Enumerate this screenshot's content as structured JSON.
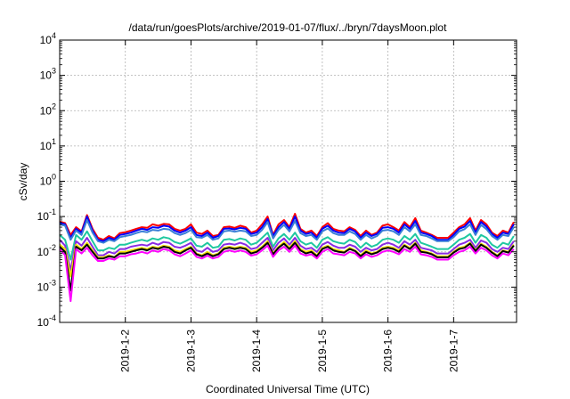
{
  "chart_data": {
    "type": "line",
    "title": "/data/run/goesPlots/archive/2019-01-07/flux/../bryn/7daysMoon.plot",
    "xlabel": "Coordinated Universal Time (UTC)",
    "ylabel": "cSv/day",
    "y_scale": "log",
    "ylim": [
      0.0001,
      10000
    ],
    "xlim": [
      "2019-01-01T00:00",
      "2019-01-07T23:00"
    ],
    "grid": true,
    "x_tick_labels": [
      "2019-1-2",
      "2019-1-3",
      "2019-1-4",
      "2019-1-5",
      "2019-1-6",
      "2019-1-7"
    ],
    "x_tick_dates": [
      "2019-01-02T00:00",
      "2019-01-03T00:00",
      "2019-01-04T00:00",
      "2019-01-05T00:00",
      "2019-01-06T00:00",
      "2019-01-07T00:00"
    ],
    "y_ticks": [
      {
        "value": 0.0001,
        "base": "10",
        "exp": "-4"
      },
      {
        "value": 0.001,
        "base": "10",
        "exp": "-3"
      },
      {
        "value": 0.01,
        "base": "10",
        "exp": "-2"
      },
      {
        "value": 0.1,
        "base": "10",
        "exp": "-1"
      },
      {
        "value": 1,
        "base": "10",
        "exp": "0"
      },
      {
        "value": 10,
        "base": "10",
        "exp": "1"
      },
      {
        "value": 100,
        "base": "10",
        "exp": "2"
      },
      {
        "value": 1000,
        "base": "10",
        "exp": "3"
      },
      {
        "value": 10000,
        "base": "10",
        "exp": "4"
      }
    ],
    "x": [
      "2019-01-01T00:00",
      "2019-01-01T02:00",
      "2019-01-01T04:00",
      "2019-01-01T06:00",
      "2019-01-01T08:00",
      "2019-01-01T10:00",
      "2019-01-01T12:00",
      "2019-01-01T14:00",
      "2019-01-01T16:00",
      "2019-01-01T18:00",
      "2019-01-01T20:00",
      "2019-01-01T22:00",
      "2019-01-02T00:00",
      "2019-01-02T02:00",
      "2019-01-02T04:00",
      "2019-01-02T06:00",
      "2019-01-02T08:00",
      "2019-01-02T10:00",
      "2019-01-02T12:00",
      "2019-01-02T14:00",
      "2019-01-02T16:00",
      "2019-01-02T18:00",
      "2019-01-02T20:00",
      "2019-01-02T22:00",
      "2019-01-03T00:00",
      "2019-01-03T02:00",
      "2019-01-03T04:00",
      "2019-01-03T06:00",
      "2019-01-03T08:00",
      "2019-01-03T10:00",
      "2019-01-03T12:00",
      "2019-01-03T14:00",
      "2019-01-03T16:00",
      "2019-01-03T18:00",
      "2019-01-03T20:00",
      "2019-01-03T22:00",
      "2019-01-04T00:00",
      "2019-01-04T02:00",
      "2019-01-04T04:00",
      "2019-01-04T06:00",
      "2019-01-04T08:00",
      "2019-01-04T10:00",
      "2019-01-04T12:00",
      "2019-01-04T14:00",
      "2019-01-04T16:00",
      "2019-01-04T18:00",
      "2019-01-04T20:00",
      "2019-01-04T22:00",
      "2019-01-05T00:00",
      "2019-01-05T02:00",
      "2019-01-05T04:00",
      "2019-01-05T06:00",
      "2019-01-05T08:00",
      "2019-01-05T10:00",
      "2019-01-05T12:00",
      "2019-01-05T14:00",
      "2019-01-05T16:00",
      "2019-01-05T18:00",
      "2019-01-05T20:00",
      "2019-01-05T22:00",
      "2019-01-06T00:00",
      "2019-01-06T02:00",
      "2019-01-06T04:00",
      "2019-01-06T06:00",
      "2019-01-06T08:00",
      "2019-01-06T10:00",
      "2019-01-06T12:00",
      "2019-01-06T14:00",
      "2019-01-06T16:00",
      "2019-01-06T18:00",
      "2019-01-06T20:00",
      "2019-01-06T22:00",
      "2019-01-07T00:00",
      "2019-01-07T02:00",
      "2019-01-07T04:00",
      "2019-01-07T06:00",
      "2019-01-07T08:00",
      "2019-01-07T10:00",
      "2019-01-07T12:00",
      "2019-01-07T14:00",
      "2019-01-07T16:00",
      "2019-01-07T18:00",
      "2019-01-07T20:00",
      "2019-01-07T22:00"
    ],
    "series": [
      {
        "color": "#ff0000",
        "values": [
          0.072,
          0.065,
          0.03,
          0.05,
          0.038,
          0.11,
          0.045,
          0.025,
          0.022,
          0.028,
          0.024,
          0.034,
          0.036,
          0.04,
          0.045,
          0.05,
          0.048,
          0.06,
          0.055,
          0.062,
          0.06,
          0.045,
          0.04,
          0.045,
          0.06,
          0.035,
          0.032,
          0.04,
          0.028,
          0.03,
          0.05,
          0.052,
          0.048,
          0.055,
          0.05,
          0.035,
          0.04,
          0.06,
          0.1,
          0.03,
          0.06,
          0.08,
          0.05,
          0.12,
          0.045,
          0.035,
          0.04,
          0.028,
          0.05,
          0.065,
          0.045,
          0.04,
          0.038,
          0.05,
          0.042,
          0.028,
          0.04,
          0.03,
          0.035,
          0.055,
          0.06,
          0.05,
          0.04,
          0.07,
          0.05,
          0.09,
          0.04,
          0.035,
          0.03,
          0.025,
          0.025,
          0.025,
          0.035,
          0.05,
          0.06,
          0.09,
          0.04,
          0.08,
          0.06,
          0.035,
          0.028,
          0.04,
          0.035,
          0.07
        ]
      },
      {
        "color": "#0000ff",
        "values": [
          0.065,
          0.06,
          0.025,
          0.045,
          0.035,
          0.1,
          0.04,
          0.022,
          0.02,
          0.025,
          0.022,
          0.03,
          0.032,
          0.035,
          0.04,
          0.045,
          0.042,
          0.05,
          0.048,
          0.055,
          0.052,
          0.04,
          0.035,
          0.04,
          0.05,
          0.03,
          0.028,
          0.035,
          0.025,
          0.028,
          0.045,
          0.046,
          0.043,
          0.048,
          0.045,
          0.032,
          0.035,
          0.05,
          0.085,
          0.028,
          0.05,
          0.07,
          0.045,
          0.1,
          0.04,
          0.032,
          0.035,
          0.025,
          0.045,
          0.055,
          0.04,
          0.035,
          0.034,
          0.045,
          0.038,
          0.025,
          0.035,
          0.028,
          0.032,
          0.048,
          0.05,
          0.045,
          0.035,
          0.06,
          0.045,
          0.075,
          0.035,
          0.032,
          0.028,
          0.022,
          0.022,
          0.022,
          0.03,
          0.045,
          0.052,
          0.075,
          0.035,
          0.07,
          0.052,
          0.032,
          0.025,
          0.035,
          0.032,
          0.06
        ]
      },
      {
        "color": "#3a7fd5",
        "values": [
          0.06,
          0.055,
          0.022,
          0.04,
          0.03,
          0.08,
          0.035,
          0.02,
          0.018,
          0.022,
          0.02,
          0.026,
          0.028,
          0.03,
          0.034,
          0.038,
          0.036,
          0.042,
          0.04,
          0.045,
          0.043,
          0.034,
          0.03,
          0.034,
          0.042,
          0.026,
          0.025,
          0.03,
          0.022,
          0.024,
          0.038,
          0.04,
          0.037,
          0.04,
          0.038,
          0.028,
          0.03,
          0.042,
          0.07,
          0.024,
          0.042,
          0.058,
          0.038,
          0.075,
          0.034,
          0.028,
          0.03,
          0.022,
          0.038,
          0.046,
          0.034,
          0.03,
          0.03,
          0.038,
          0.032,
          0.022,
          0.03,
          0.024,
          0.028,
          0.04,
          0.042,
          0.038,
          0.03,
          0.05,
          0.038,
          0.06,
          0.03,
          0.028,
          0.024,
          0.02,
          0.02,
          0.02,
          0.026,
          0.038,
          0.044,
          0.06,
          0.03,
          0.058,
          0.044,
          0.028,
          0.022,
          0.03,
          0.028,
          0.05
        ]
      },
      {
        "color": "#1fc8a0",
        "values": [
          0.03,
          0.022,
          0.006,
          0.03,
          0.022,
          0.038,
          0.02,
          0.011,
          0.011,
          0.013,
          0.012,
          0.016,
          0.016,
          0.018,
          0.02,
          0.022,
          0.02,
          0.024,
          0.022,
          0.026,
          0.024,
          0.019,
          0.017,
          0.02,
          0.024,
          0.015,
          0.014,
          0.018,
          0.013,
          0.014,
          0.022,
          0.023,
          0.021,
          0.024,
          0.022,
          0.016,
          0.018,
          0.025,
          0.035,
          0.014,
          0.024,
          0.032,
          0.022,
          0.035,
          0.02,
          0.016,
          0.018,
          0.013,
          0.022,
          0.026,
          0.02,
          0.018,
          0.017,
          0.022,
          0.019,
          0.013,
          0.018,
          0.014,
          0.016,
          0.022,
          0.024,
          0.022,
          0.018,
          0.028,
          0.022,
          0.032,
          0.018,
          0.016,
          0.014,
          0.012,
          0.012,
          0.012,
          0.016,
          0.022,
          0.025,
          0.032,
          0.018,
          0.03,
          0.025,
          0.016,
          0.013,
          0.018,
          0.016,
          0.028
        ]
      },
      {
        "color": "#8a2be2",
        "values": [
          0.022,
          0.015,
          0.003,
          0.02,
          0.015,
          0.025,
          0.014,
          0.008,
          0.008,
          0.01,
          0.009,
          0.012,
          0.012,
          0.014,
          0.015,
          0.016,
          0.015,
          0.018,
          0.016,
          0.019,
          0.018,
          0.014,
          0.013,
          0.015,
          0.018,
          0.011,
          0.01,
          0.013,
          0.01,
          0.011,
          0.016,
          0.017,
          0.016,
          0.018,
          0.016,
          0.012,
          0.013,
          0.018,
          0.025,
          0.011,
          0.018,
          0.024,
          0.016,
          0.025,
          0.015,
          0.012,
          0.013,
          0.01,
          0.016,
          0.019,
          0.015,
          0.013,
          0.013,
          0.016,
          0.014,
          0.01,
          0.013,
          0.011,
          0.012,
          0.016,
          0.018,
          0.016,
          0.013,
          0.02,
          0.016,
          0.022,
          0.013,
          0.012,
          0.011,
          0.009,
          0.009,
          0.009,
          0.012,
          0.016,
          0.018,
          0.022,
          0.013,
          0.021,
          0.018,
          0.012,
          0.01,
          0.013,
          0.012,
          0.02
        ]
      },
      {
        "color": "#f0e000",
        "values": [
          0.016,
          0.012,
          0.002,
          0.016,
          0.012,
          0.018,
          0.011,
          0.007,
          0.007,
          0.008,
          0.007,
          0.01,
          0.01,
          0.011,
          0.012,
          0.013,
          0.012,
          0.014,
          0.013,
          0.015,
          0.014,
          0.011,
          0.01,
          0.012,
          0.014,
          0.009,
          0.008,
          0.01,
          0.008,
          0.009,
          0.013,
          0.014,
          0.013,
          0.014,
          0.013,
          0.01,
          0.011,
          0.014,
          0.02,
          0.009,
          0.014,
          0.019,
          0.013,
          0.02,
          0.012,
          0.01,
          0.011,
          0.008,
          0.013,
          0.015,
          0.012,
          0.011,
          0.01,
          0.013,
          0.011,
          0.008,
          0.011,
          0.009,
          0.01,
          0.013,
          0.014,
          0.013,
          0.011,
          0.016,
          0.013,
          0.018,
          0.011,
          0.01,
          0.009,
          0.0075,
          0.0075,
          0.0075,
          0.01,
          0.013,
          0.014,
          0.018,
          0.011,
          0.017,
          0.014,
          0.01,
          0.008,
          0.011,
          0.01,
          0.016
        ]
      },
      {
        "color": "#000000",
        "values": [
          0.014,
          0.01,
          0.0008,
          0.014,
          0.011,
          0.016,
          0.01,
          0.0065,
          0.0065,
          0.0075,
          0.007,
          0.009,
          0.009,
          0.01,
          0.011,
          0.012,
          0.011,
          0.013,
          0.012,
          0.014,
          0.013,
          0.01,
          0.009,
          0.011,
          0.013,
          0.0085,
          0.0075,
          0.009,
          0.0075,
          0.0085,
          0.012,
          0.013,
          0.012,
          0.013,
          0.012,
          0.009,
          0.01,
          0.013,
          0.018,
          0.0085,
          0.013,
          0.017,
          0.012,
          0.018,
          0.011,
          0.009,
          0.01,
          0.0075,
          0.012,
          0.014,
          0.011,
          0.01,
          0.0095,
          0.012,
          0.0105,
          0.0075,
          0.01,
          0.0085,
          0.0095,
          0.012,
          0.013,
          0.012,
          0.01,
          0.015,
          0.012,
          0.017,
          0.01,
          0.0095,
          0.0085,
          0.007,
          0.007,
          0.007,
          0.0095,
          0.012,
          0.013,
          0.017,
          0.0105,
          0.016,
          0.013,
          0.0095,
          0.0075,
          0.0105,
          0.0095,
          0.015
        ]
      },
      {
        "color": "#ff00ff",
        "values": [
          0.012,
          0.008,
          0.0004,
          0.012,
          0.009,
          0.013,
          0.008,
          0.0055,
          0.0055,
          0.0065,
          0.006,
          0.0075,
          0.0075,
          0.0085,
          0.009,
          0.01,
          0.009,
          0.011,
          0.01,
          0.012,
          0.011,
          0.0085,
          0.0075,
          0.009,
          0.011,
          0.0072,
          0.0065,
          0.0078,
          0.0065,
          0.0072,
          0.01,
          0.011,
          0.01,
          0.011,
          0.01,
          0.0078,
          0.0085,
          0.011,
          0.015,
          0.0072,
          0.011,
          0.014,
          0.01,
          0.015,
          0.009,
          0.0078,
          0.0085,
          0.0065,
          0.01,
          0.012,
          0.009,
          0.0085,
          0.008,
          0.01,
          0.009,
          0.0065,
          0.0085,
          0.0072,
          0.008,
          0.01,
          0.011,
          0.01,
          0.0085,
          0.012,
          0.01,
          0.014,
          0.0085,
          0.008,
          0.0072,
          0.006,
          0.006,
          0.006,
          0.008,
          0.01,
          0.011,
          0.014,
          0.009,
          0.013,
          0.011,
          0.008,
          0.0065,
          0.009,
          0.008,
          0.012
        ]
      }
    ]
  }
}
